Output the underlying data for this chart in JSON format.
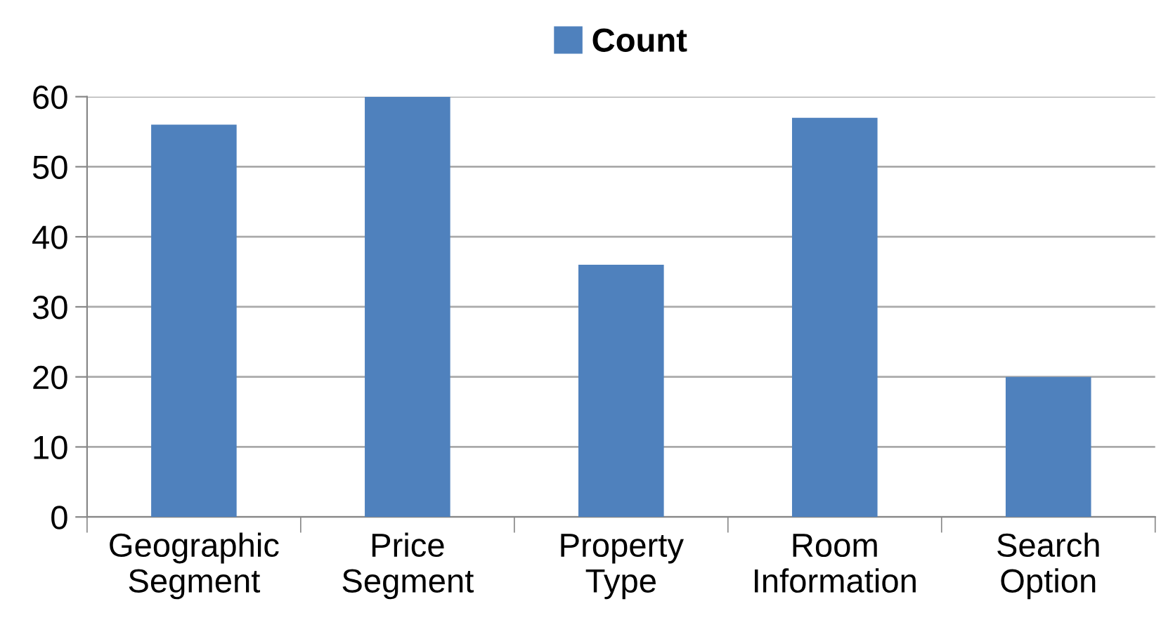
{
  "chart_data": {
    "type": "bar",
    "categories": [
      "Geographic\nSegment",
      "Price\nSegment",
      "Property\nType",
      "Room\nInformation",
      "Search\nOption"
    ],
    "series": [
      {
        "name": "Count",
        "color": "#4f81bd",
        "values": [
          56,
          60,
          36,
          57,
          20
        ]
      }
    ],
    "ylim": [
      0,
      60
    ],
    "yticks": [
      0,
      10,
      20,
      30,
      40,
      50,
      60
    ],
    "grid": "y",
    "legend": "top"
  }
}
